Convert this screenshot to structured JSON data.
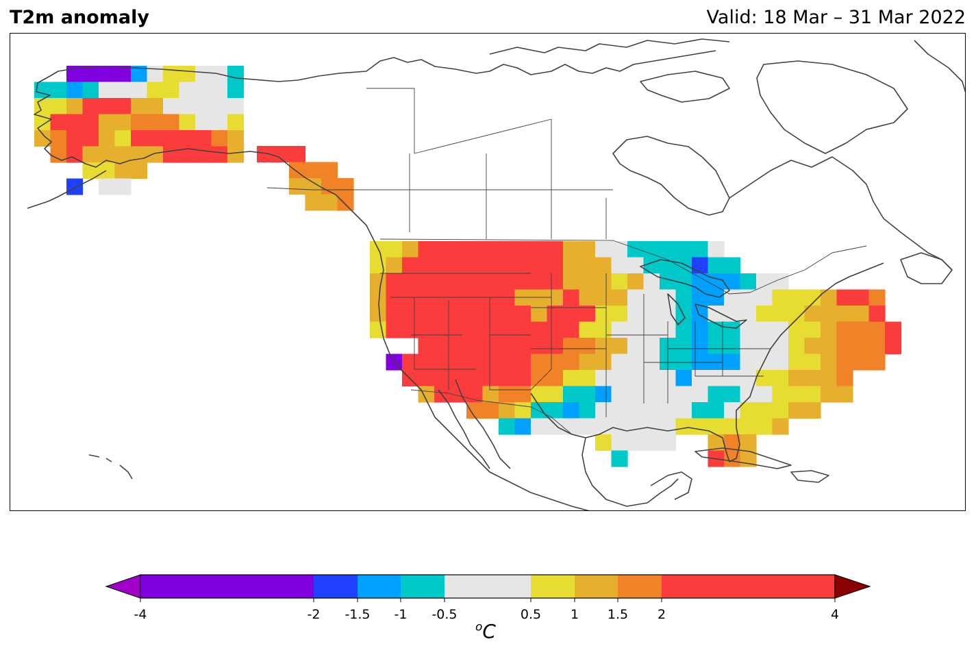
{
  "header": {
    "title": "T2m anomaly",
    "valid": "Valid: 18 Mar – 31 Mar 2022"
  },
  "legend": {
    "unit_base": "C",
    "unit_sup": "o",
    "ticks": [
      "-4",
      "-2",
      "-1.5",
      "-1",
      "-0.5",
      "0.5",
      "1",
      "1.5",
      "2",
      "4"
    ],
    "tick_values": [
      -4,
      -2,
      -1.5,
      -1,
      -0.5,
      0.5,
      1,
      1.5,
      2,
      4
    ],
    "bins": [
      {
        "from": -4,
        "to": -2,
        "color": "#8000e0"
      },
      {
        "from": -2,
        "to": -1.5,
        "color": "#2040ff"
      },
      {
        "from": -1.5,
        "to": -1,
        "color": "#00a0ff"
      },
      {
        "from": -1,
        "to": -0.5,
        "color": "#00c8c8"
      },
      {
        "from": -0.5,
        "to": 0.5,
        "color": "#e6e6e6"
      },
      {
        "from": 0.5,
        "to": 1,
        "color": "#e6dc32"
      },
      {
        "from": 1,
        "to": 1.5,
        "color": "#e6af2d"
      },
      {
        "from": 1.5,
        "to": 2,
        "color": "#f08228"
      },
      {
        "from": 2,
        "to": 4,
        "color": "#fa3c3c"
      }
    ],
    "under_color": "#a000c8",
    "over_color": "#8b0000"
  },
  "map": {
    "colors": {
      "P": "#8000e0",
      "B": "#2040ff",
      "L": "#00a0ff",
      "C": "#00c8c8",
      "W": "#e6e6e6",
      "Y": "#e6dc32",
      "G": "#e6af2d",
      "O": "#f08228",
      "R": "#fa3c3c"
    },
    "coastline_color": "#404040"
  }
}
